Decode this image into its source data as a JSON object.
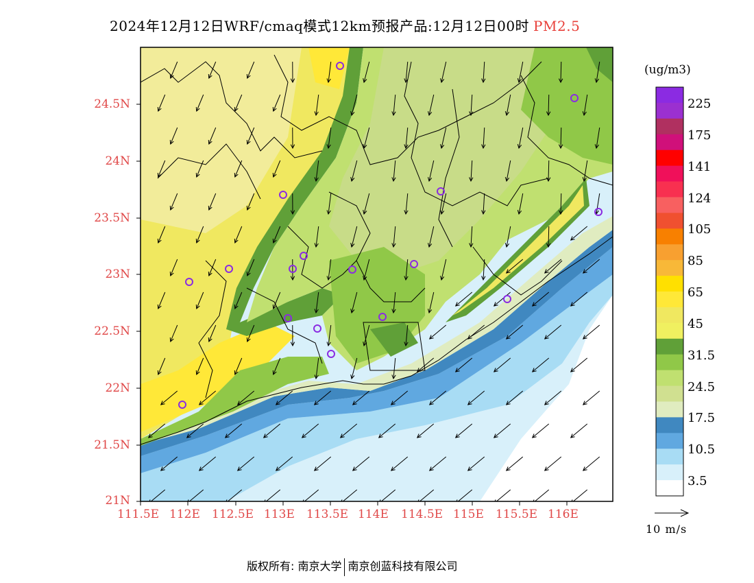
{
  "header": {
    "title": "2024年12月12日WRF/cmaq模式12km预报产品:12月12日00时",
    "species": "PM2.5",
    "species_color": "#e8403a"
  },
  "map": {
    "lat_labels": [
      "24.5N",
      "24N",
      "23.5N",
      "23N",
      "22.5N",
      "22N",
      "21.5N",
      "21N"
    ],
    "lon_labels": [
      "111.5E",
      "112E",
      "112.5E",
      "113E",
      "113.5E",
      "114E",
      "114.5E",
      "115E",
      "115.5E",
      "116E"
    ],
    "axis_label_color": "#e04848",
    "station_marker_color": "#8a2be2"
  },
  "legend": {
    "unit": "(ug/m3)",
    "labels": [
      "225",
      "175",
      "141",
      "124",
      "105",
      "85",
      "65",
      "45",
      "31.5",
      "24.5",
      "17.5",
      "10.5",
      "3.5"
    ],
    "colors": [
      "#8b2be2",
      "#9b30d0",
      "#b03060",
      "#d0107a",
      "#ff0000",
      "#f0105a",
      "#f83050",
      "#f86060",
      "#f05030",
      "#f88000",
      "#f8a030",
      "#f8b838",
      "#ffe000",
      "#ffe838",
      "#f0e860",
      "#f0f060",
      "#60a038",
      "#90c848",
      "#c0e070",
      "#d0e090",
      "#e0ecc0",
      "#4088c0",
      "#60a8e0",
      "#a8dcf4",
      "#d8f0fa",
      "#ffffff"
    ]
  },
  "wind_reference": {
    "label": "10 m/s"
  },
  "footer": {
    "copyright": "版权所有: 南京大学",
    "company": "南京创蓝科技有限公司"
  }
}
